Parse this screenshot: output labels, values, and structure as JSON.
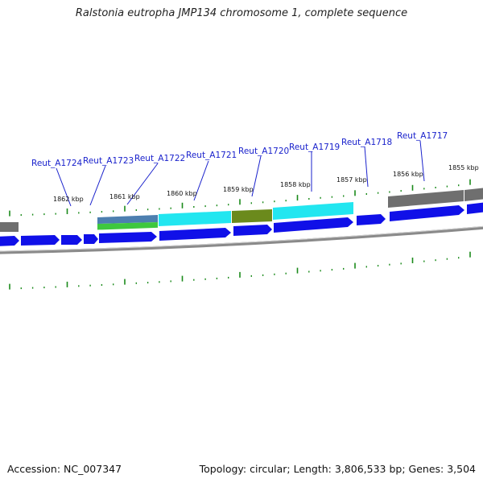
{
  "title": "Ralstonia eutropha JMP134 chromosome 1, complete sequence",
  "footer": {
    "accession": "Accession: NC_007347",
    "summary": "Topology: circular; Length: 3,806,533 bp; Genes: 3,504"
  },
  "gene_labels": [
    "Reut_A1724",
    "Reut_A1723",
    "Reut_A1722",
    "Reut_A1721",
    "Reut_A1720",
    "Reut_A1719",
    "Reut_A1718",
    "Reut_A1717"
  ],
  "position_labels": [
    "1862 kbp",
    "1861 kbp",
    "1860 kbp",
    "1859 kbp",
    "1858 kbp",
    "1857 kbp",
    "1856 kbp",
    "1855 kbp"
  ],
  "colors": {
    "cds_forward": "#1010e8",
    "tick": "#1a8a1a",
    "label": "#1a22cc",
    "backbone": "#8a8a8a",
    "cyan": "#22e6f0",
    "olive": "#6b8a1c",
    "green": "#3ec83e",
    "steel": "#4d7fb0",
    "gray": "#707070"
  }
}
